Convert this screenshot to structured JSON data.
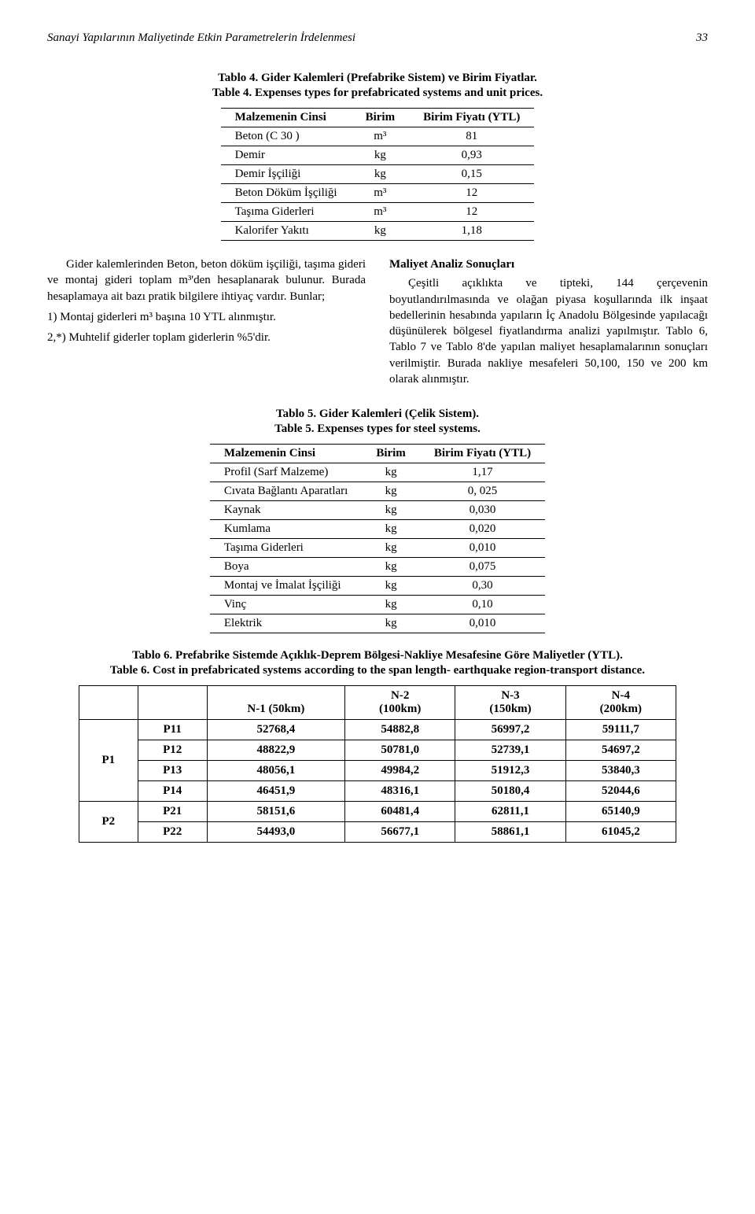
{
  "page": {
    "running_title": "Sanayi Yapılarının Maliyetinde Etkin Parametrelerin İrdelenmesi",
    "page_number": "33"
  },
  "table4": {
    "caption_tr": "Tablo 4. Gider Kalemleri (Prefabrike Sistem) ve Birim Fiyatlar.",
    "caption_en": "Table 4. Expenses types for prefabricated systems and unit prices.",
    "head_name": "Malzemenin Cinsi",
    "head_unit": "Birim",
    "head_price": "Birim Fiyatı (YTL)",
    "rows": [
      {
        "name": "Beton (C 30 )",
        "unit": "m³",
        "price": "81"
      },
      {
        "name": "Demir",
        "unit": "kg",
        "price": "0,93"
      },
      {
        "name": "Demir İşçiliği",
        "unit": "kg",
        "price": "0,15"
      },
      {
        "name": "Beton Döküm İşçiliği",
        "unit": "m³",
        "price": "12"
      },
      {
        "name": "Taşıma Giderleri",
        "unit": "m³",
        "price": "12"
      },
      {
        "name": "Kalorifer Yakıtı",
        "unit": "kg",
        "price": "1,18"
      }
    ]
  },
  "body_left": {
    "p1": "Gider kalemlerinden Beton, beton döküm işçiliği, taşıma gideri ve montaj gideri toplam m³'den hesaplanarak bulunur. Burada hesaplamaya ait bazı pratik bilgilere ihtiyaç vardır. Bunlar;",
    "p2": "1) Montaj giderleri m³ başına 10 YTL alınmıştır.",
    "p3": "2,*) Muhtelif giderler toplam giderlerin %5'dir."
  },
  "body_right": {
    "title": "Maliyet Analiz Sonuçları",
    "p1": "Çeşitli açıklıkta ve tipteki, 144 çerçevenin boyutlandırılmasında ve olağan piyasa koşullarında ilk inşaat bedellerinin hesabında yapıların İç Anadolu Bölgesinde yapılacağı düşünülerek bölgesel fiyatlandırma analizi yapılmıştır. Tablo 6, Tablo 7 ve Tablo 8'de yapılan maliyet hesaplamalarının sonuçları verilmiştir. Burada nakliye mesafeleri 50,100, 150 ve 200 km olarak alınmıştır."
  },
  "table5": {
    "caption_tr": "Tablo 5. Gider Kalemleri (Çelik Sistem).",
    "caption_en": "Table 5. Expenses types for steel systems.",
    "head_name": "Malzemenin Cinsi",
    "head_unit": "Birim",
    "head_price": "Birim Fiyatı (YTL)",
    "rows": [
      {
        "name": "Profil (Sarf Malzeme)",
        "unit": "kg",
        "price": "1,17"
      },
      {
        "name": "Cıvata Bağlantı Aparatları",
        "unit": "kg",
        "price": "0, 025"
      },
      {
        "name": "Kaynak",
        "unit": "kg",
        "price": "0,030"
      },
      {
        "name": "Kumlama",
        "unit": "kg",
        "price": "0,020"
      },
      {
        "name": "Taşıma Giderleri",
        "unit": "kg",
        "price": "0,010"
      },
      {
        "name": "Boya",
        "unit": "kg",
        "price": "0,075"
      },
      {
        "name": "Montaj ve İmalat İşçiliği",
        "unit": "kg",
        "price": "0,30"
      },
      {
        "name": "Vinç",
        "unit": "kg",
        "price": "0,10"
      },
      {
        "name": "Elektrik",
        "unit": "kg",
        "price": "0,010"
      }
    ]
  },
  "table6": {
    "caption_tr": "Tablo 6. Prefabrike Sistemde Açıklık-Deprem Bölgesi-Nakliye Mesafesine Göre Maliyetler (YTL).",
    "caption_en": "Table 6. Cost in prefabricated systems according to the span length- earthquake region-transport distance.",
    "head": {
      "c1": "N-1 (50km)",
      "c2a": "N-2",
      "c2b": "(100km)",
      "c3a": "N-3",
      "c3b": "(150km)",
      "c4a": "N-4",
      "c4b": "(200km)"
    },
    "groups": [
      {
        "label": "P1",
        "rows": [
          {
            "key": "P11",
            "v": [
              "52768,4",
              "54882,8",
              "56997,2",
              "59111,7"
            ]
          },
          {
            "key": "P12",
            "v": [
              "48822,9",
              "50781,0",
              "52739,1",
              "54697,2"
            ]
          },
          {
            "key": "P13",
            "v": [
              "48056,1",
              "49984,2",
              "51912,3",
              "53840,3"
            ]
          },
          {
            "key": "P14",
            "v": [
              "46451,9",
              "48316,1",
              "50180,4",
              "52044,6"
            ]
          }
        ]
      },
      {
        "label": "P2",
        "rows": [
          {
            "key": "P21",
            "v": [
              "58151,6",
              "60481,4",
              "62811,1",
              "65140,9"
            ]
          },
          {
            "key": "P22",
            "v": [
              "54493,0",
              "56677,1",
              "58861,1",
              "61045,2"
            ]
          }
        ]
      }
    ]
  }
}
